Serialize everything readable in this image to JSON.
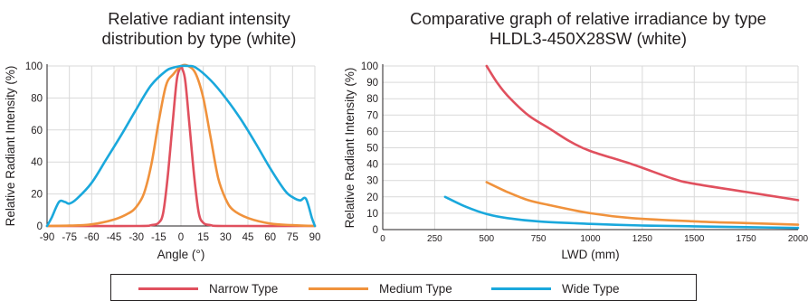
{
  "titles": {
    "left": "Relative radiant intensity\ndistribution by type (white)",
    "right": "Comparative graph of relative irradiance by type\nHLDL3-450X28SW (white)"
  },
  "legend": [
    {
      "label": "Narrow Type",
      "color": "#e0505e"
    },
    {
      "label": "Medium Type",
      "color": "#f0923c"
    },
    {
      "label": "Wide Type",
      "color": "#1aa8dc"
    }
  ],
  "chart_data": [
    {
      "type": "line",
      "title": "Relative radiant intensity distribution by type (white)",
      "xlabel": "Angle (°)",
      "ylabel": "Relative Radiant Intensity (%)",
      "xlim": [
        -90,
        90
      ],
      "ylim": [
        0,
        100
      ],
      "xticks": [
        -90,
        -75,
        -60,
        -45,
        -30,
        -15,
        0,
        15,
        30,
        45,
        60,
        75,
        90
      ],
      "yticks": [
        0,
        20,
        40,
        60,
        80,
        100
      ],
      "grid": true,
      "series": [
        {
          "name": "Narrow Type",
          "color": "#e0505e",
          "x": [
            -90,
            -30,
            -20,
            -15,
            -12,
            -9,
            -6,
            -3,
            -1,
            0,
            1,
            3,
            6,
            9,
            12,
            15,
            20,
            30,
            90
          ],
          "y": [
            0,
            0,
            0.5,
            2,
            8,
            30,
            60,
            90,
            98,
            100,
            98,
            90,
            60,
            30,
            8,
            2,
            0.5,
            0,
            0
          ]
        },
        {
          "name": "Medium Type",
          "color": "#f0923c",
          "x": [
            -90,
            -75,
            -60,
            -45,
            -35,
            -30,
            -25,
            -20,
            -15,
            -10,
            -5,
            0,
            5,
            10,
            15,
            20,
            25,
            30,
            35,
            45,
            60,
            75,
            90
          ],
          "y": [
            0,
            0.2,
            1,
            4,
            8,
            12,
            20,
            38,
            65,
            88,
            95,
            100,
            100,
            95,
            80,
            55,
            30,
            17,
            10,
            5,
            1.5,
            0.5,
            0
          ]
        },
        {
          "name": "Wide Type",
          "color": "#1aa8dc",
          "x": [
            -90,
            -87,
            -82,
            -78,
            -75,
            -70,
            -60,
            -50,
            -40,
            -30,
            -20,
            -10,
            -5,
            0,
            5,
            10,
            20,
            30,
            40,
            50,
            60,
            70,
            75,
            80,
            84,
            88,
            90
          ],
          "y": [
            0,
            5,
            15,
            15,
            14,
            17,
            27,
            42,
            57,
            73,
            88,
            97,
            99,
            100,
            100,
            99,
            91,
            80,
            67,
            52,
            36,
            22,
            18,
            16,
            17,
            5,
            0
          ]
        }
      ]
    },
    {
      "type": "line",
      "title": "Comparative graph of relative irradiance by type HLDL3-450X28SW (white)",
      "xlabel": "LWD (mm)",
      "ylabel": "Relative Radiant Intensity (%)",
      "xlim": [
        0,
        2000
      ],
      "ylim": [
        0,
        100
      ],
      "xticks": [
        0,
        250,
        500,
        750,
        1000,
        1250,
        1500,
        1750,
        2000
      ],
      "yticks": [
        0,
        10,
        20,
        30,
        40,
        50,
        60,
        70,
        80,
        90,
        100
      ],
      "grid": true,
      "series": [
        {
          "name": "Narrow Type",
          "color": "#e0505e",
          "x": [
            500,
            550,
            600,
            700,
            800,
            900,
            1000,
            1200,
            1400,
            1500,
            1750,
            2000
          ],
          "y": [
            100,
            90,
            82,
            70,
            62,
            54,
            48,
            40,
            31,
            28,
            23,
            18
          ]
        },
        {
          "name": "Medium Type",
          "color": "#f0923c",
          "x": [
            500,
            600,
            700,
            800,
            1000,
            1200,
            1500,
            1750,
            2000
          ],
          "y": [
            29,
            23,
            18,
            15,
            10,
            7,
            5,
            4,
            3
          ]
        },
        {
          "name": "Wide Type",
          "color": "#1aa8dc",
          "x": [
            300,
            400,
            500,
            600,
            750,
            1000,
            1250,
            1500,
            1750,
            2000
          ],
          "y": [
            20,
            14,
            9.5,
            7,
            5,
            3.5,
            2.5,
            2,
            1.5,
            1
          ]
        }
      ]
    }
  ]
}
